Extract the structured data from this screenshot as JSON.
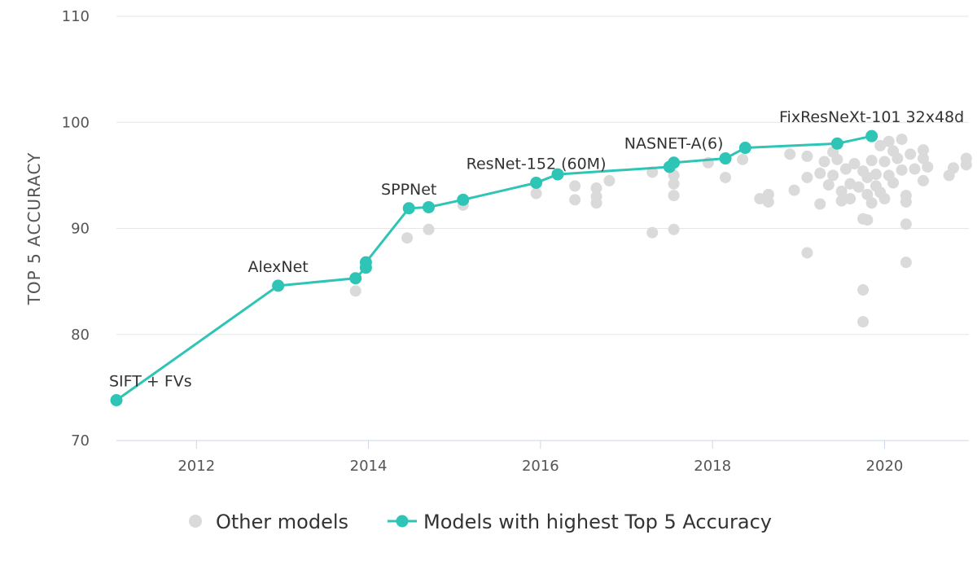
{
  "chart_data": {
    "type": "scatter",
    "title": "",
    "xlabel": "",
    "ylabel": "TOP 5 ACCURACY",
    "xlim": [
      2011.07,
      2020.98
    ],
    "ylim": [
      70,
      110
    ],
    "x_ticks": [
      2012,
      2014,
      2016,
      2018,
      2020
    ],
    "y_ticks": [
      70,
      80,
      90,
      100,
      110
    ],
    "grid": "horizontal",
    "legend_position": "bottom-center",
    "colors": {
      "other": "#dadada",
      "best": "#2ec4b6"
    },
    "series": [
      {
        "name": "Other models",
        "kind": "scatter",
        "points": [
          [
            2013.85,
            84.1
          ],
          [
            2014.45,
            89.1
          ],
          [
            2014.7,
            89.9
          ],
          [
            2015.1,
            92.2
          ],
          [
            2015.95,
            93.3
          ],
          [
            2016.4,
            94.0
          ],
          [
            2016.4,
            92.7
          ],
          [
            2016.65,
            93.8
          ],
          [
            2016.65,
            93.0
          ],
          [
            2016.65,
            92.4
          ],
          [
            2016.8,
            94.5
          ],
          [
            2017.3,
            95.3
          ],
          [
            2017.3,
            89.6
          ],
          [
            2017.55,
            94.2
          ],
          [
            2017.55,
            93.1
          ],
          [
            2017.55,
            89.9
          ],
          [
            2017.55,
            95.0
          ],
          [
            2017.95,
            96.2
          ],
          [
            2018.15,
            94.8
          ],
          [
            2018.35,
            96.5
          ],
          [
            2018.55,
            92.8
          ],
          [
            2018.65,
            93.2
          ],
          [
            2018.65,
            92.5
          ],
          [
            2018.9,
            97.0
          ],
          [
            2018.95,
            93.6
          ],
          [
            2019.1,
            96.8
          ],
          [
            2019.1,
            94.8
          ],
          [
            2019.1,
            87.7
          ],
          [
            2019.25,
            95.2
          ],
          [
            2019.25,
            92.3
          ],
          [
            2019.3,
            96.3
          ],
          [
            2019.35,
            94.1
          ],
          [
            2019.4,
            97.2
          ],
          [
            2019.4,
            95.0
          ],
          [
            2019.45,
            96.5
          ],
          [
            2019.5,
            93.5
          ],
          [
            2019.5,
            92.6
          ],
          [
            2019.55,
            95.6
          ],
          [
            2019.6,
            94.2
          ],
          [
            2019.6,
            92.8
          ],
          [
            2019.65,
            96.1
          ],
          [
            2019.7,
            93.9
          ],
          [
            2019.75,
            95.4
          ],
          [
            2019.75,
            90.9
          ],
          [
            2019.8,
            94.8
          ],
          [
            2019.8,
            93.2
          ],
          [
            2019.85,
            92.4
          ],
          [
            2019.85,
            96.4
          ],
          [
            2019.75,
            84.2
          ],
          [
            2019.75,
            81.2
          ],
          [
            2019.8,
            90.8
          ],
          [
            2019.9,
            95.1
          ],
          [
            2019.9,
            94.0
          ],
          [
            2019.95,
            93.4
          ],
          [
            2019.95,
            97.8
          ],
          [
            2020.0,
            96.3
          ],
          [
            2020.0,
            92.8
          ],
          [
            2020.05,
            95.0
          ],
          [
            2020.05,
            98.2
          ],
          [
            2020.1,
            94.3
          ],
          [
            2020.1,
            97.3
          ],
          [
            2020.15,
            96.6
          ],
          [
            2020.2,
            98.4
          ],
          [
            2020.2,
            95.5
          ],
          [
            2020.25,
            93.1
          ],
          [
            2020.25,
            92.5
          ],
          [
            2020.25,
            90.4
          ],
          [
            2020.25,
            86.8
          ],
          [
            2020.3,
            97.0
          ],
          [
            2020.35,
            95.6
          ],
          [
            2020.45,
            97.4
          ],
          [
            2020.45,
            96.6
          ],
          [
            2020.5,
            95.8
          ],
          [
            2020.45,
            94.5
          ],
          [
            2020.75,
            95.0
          ],
          [
            2020.8,
            95.7
          ],
          [
            2020.95,
            96.6
          ],
          [
            2020.95,
            96.0
          ]
        ]
      },
      {
        "name": "Models with highest Top 5 Accuracy",
        "kind": "line",
        "points": [
          [
            2011.07,
            73.8
          ],
          [
            2012.95,
            84.6
          ],
          [
            2013.85,
            85.3
          ],
          [
            2013.97,
            86.3
          ],
          [
            2013.97,
            86.8
          ],
          [
            2014.47,
            91.9
          ],
          [
            2014.7,
            92.0
          ],
          [
            2015.1,
            92.7
          ],
          [
            2015.95,
            94.3
          ],
          [
            2016.2,
            95.1
          ],
          [
            2017.5,
            95.8
          ],
          [
            2017.55,
            96.2
          ],
          [
            2018.15,
            96.6
          ],
          [
            2018.38,
            97.6
          ],
          [
            2019.45,
            98.0
          ],
          [
            2019.85,
            98.7
          ]
        ]
      }
    ],
    "annotations": [
      {
        "text": "SIFT + FVs",
        "x": 2011.07,
        "y": 73.8,
        "align": "start"
      },
      {
        "text": "AlexNet",
        "x": 2012.95,
        "y": 84.6,
        "align": "middle"
      },
      {
        "text": "SPPNet",
        "x": 2014.47,
        "y": 91.9,
        "align": "middle"
      },
      {
        "text": "ResNet-152 (60M)",
        "x": 2015.95,
        "y": 94.3,
        "align": "middle"
      },
      {
        "text": "NASNET-A(6)",
        "x": 2017.55,
        "y": 96.2,
        "align": "middle"
      },
      {
        "text": "FixResNeXt-101 32x48d",
        "x": 2019.85,
        "y": 98.7,
        "align": "middle"
      }
    ]
  }
}
